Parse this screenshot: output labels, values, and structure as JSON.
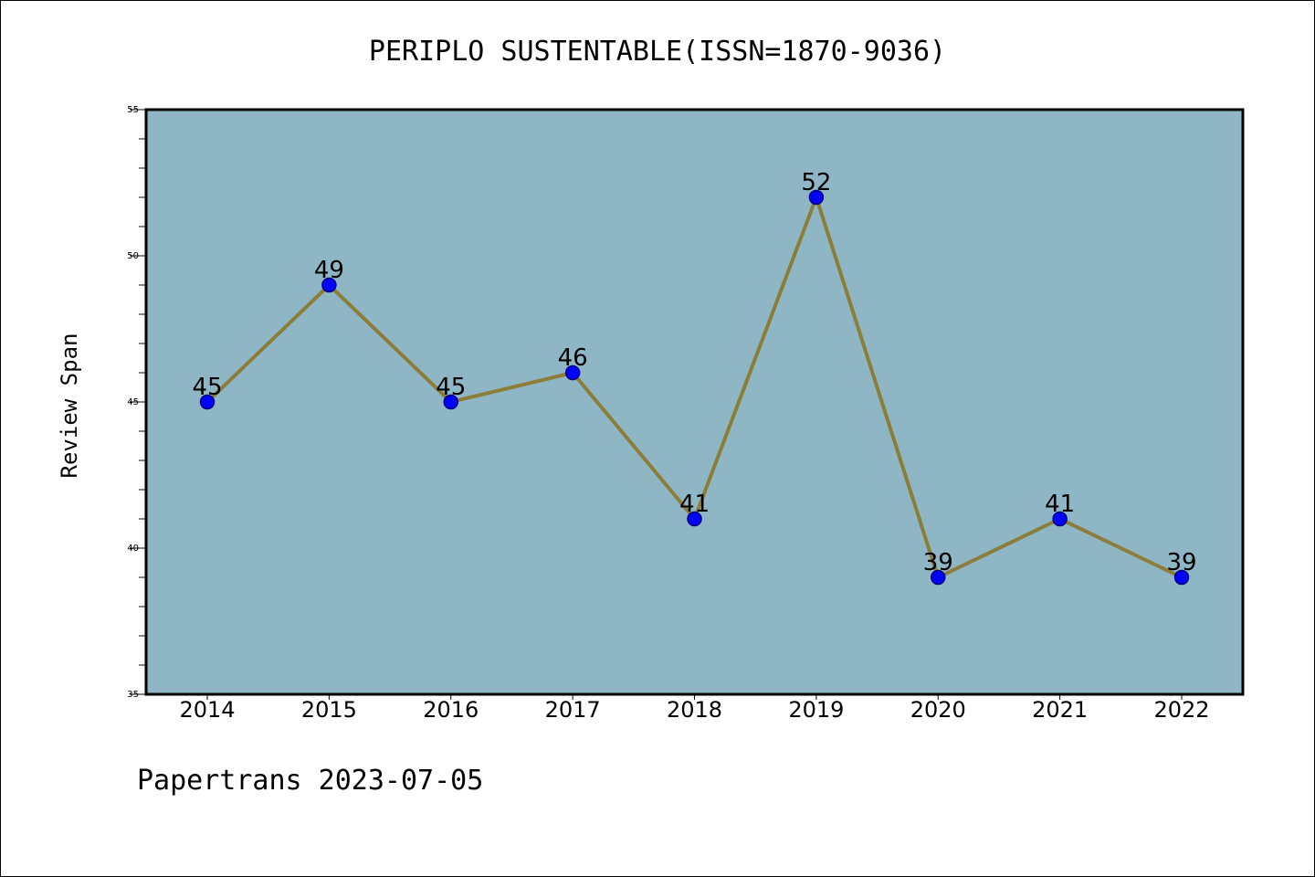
{
  "chart_data": {
    "type": "line",
    "title": "PERIPLO SUSTENTABLE(ISSN=1870-9036)",
    "xlabel": "",
    "ylabel": "Review Span",
    "categories": [
      "2014",
      "2015",
      "2016",
      "2017",
      "2018",
      "2019",
      "2020",
      "2021",
      "2022"
    ],
    "series": [
      {
        "values": [
          45,
          49,
          45,
          46,
          41,
          52,
          39,
          41,
          39
        ]
      }
    ],
    "ylim": [
      35,
      55
    ],
    "yticks": [
      35,
      40,
      45,
      50,
      55
    ],
    "grid": false,
    "data_labels": true,
    "colors": {
      "plot_background": "#8fb6c5",
      "line": "#8b7d3a",
      "marker": "#0000ff",
      "marker_edge": "#000080"
    }
  },
  "footer": "Papertrans 2023-07-05"
}
